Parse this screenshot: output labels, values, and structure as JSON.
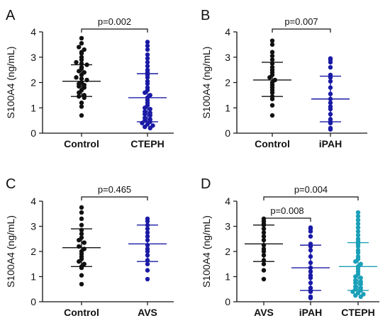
{
  "colors": {
    "black": "#111111",
    "dark_blue": "#1a1aa6",
    "blue": "#1f35b8",
    "teal": "#1aa0b8"
  },
  "chart_data": [
    {
      "panel": "A",
      "type": "scatter",
      "ylabel": "S100A4 (ng/mL)",
      "ylim": [
        0,
        4
      ],
      "yticks": [
        "0",
        "1",
        "2",
        "3",
        "4"
      ],
      "categories": [
        "Control",
        "CTEPH"
      ],
      "groups": [
        {
          "name": "Control",
          "color": "#111111",
          "mean": 2.05,
          "sd_low": 1.45,
          "sd_high": 2.7,
          "values": [
            3.75,
            3.55,
            3.4,
            3.3,
            3.2,
            3.15,
            3.0,
            2.9,
            2.8,
            2.75,
            2.7,
            2.6,
            2.55,
            2.45,
            2.4,
            2.3,
            2.2,
            2.15,
            2.1,
            2.0,
            1.95,
            1.9,
            1.85,
            1.8,
            1.7,
            1.6,
            1.5,
            1.45,
            1.4,
            1.2,
            1.05,
            0.7
          ]
        },
        {
          "name": "CTEPH",
          "color": "#1a1aa6",
          "mean": 1.4,
          "sd_low": 0.45,
          "sd_high": 2.35,
          "values": [
            3.6,
            3.45,
            3.3,
            3.1,
            2.95,
            2.8,
            2.65,
            2.5,
            2.4,
            2.3,
            2.2,
            2.05,
            1.95,
            1.8,
            1.7,
            1.6,
            1.5,
            1.4,
            1.3,
            1.2,
            1.1,
            1.0,
            0.95,
            0.85,
            0.8,
            0.75,
            0.7,
            0.6,
            0.55,
            0.5,
            0.45,
            0.4,
            0.35,
            0.3,
            0.25,
            0.2
          ]
        }
      ],
      "comparisons": [
        {
          "from": "Control",
          "to": "CTEPH",
          "label": "p=0.002"
        }
      ]
    },
    {
      "panel": "B",
      "type": "scatter",
      "ylabel": "S100A4 (ng/mL)",
      "ylim": [
        0,
        4
      ],
      "yticks": [
        "0",
        "1",
        "2",
        "3",
        "4"
      ],
      "categories": [
        "Control",
        "iPAH"
      ],
      "groups": [
        {
          "name": "Control",
          "color": "#111111",
          "mean": 2.1,
          "sd_low": 1.45,
          "sd_high": 2.8,
          "values": [
            3.65,
            3.5,
            3.2,
            3.05,
            2.9,
            2.75,
            2.6,
            2.5,
            2.4,
            2.3,
            2.2,
            2.1,
            2.0,
            1.9,
            1.8,
            1.7,
            1.6,
            1.45,
            1.35,
            1.1,
            0.7
          ]
        },
        {
          "name": "iPAH",
          "color": "#1a1aa6",
          "mean": 1.35,
          "sd_low": 0.45,
          "sd_high": 2.25,
          "values": [
            2.95,
            2.9,
            2.8,
            2.6,
            2.3,
            2.2,
            2.05,
            1.8,
            1.55,
            1.35,
            1.2,
            1.05,
            0.95,
            0.75,
            0.55,
            0.45,
            0.4,
            0.2,
            0.15
          ]
        }
      ],
      "comparisons": [
        {
          "from": "Control",
          "to": "iPAH",
          "label": "p=0.007"
        }
      ]
    },
    {
      "panel": "C",
      "type": "scatter",
      "ylabel": "S100A4 (ng/mL)",
      "ylim": [
        0,
        4
      ],
      "yticks": [
        "0",
        "1",
        "2",
        "3",
        "4"
      ],
      "categories": [
        "Control",
        "AVS"
      ],
      "groups": [
        {
          "name": "Control",
          "color": "#111111",
          "mean": 2.15,
          "sd_low": 1.4,
          "sd_high": 2.9,
          "values": [
            3.75,
            3.55,
            3.3,
            3.05,
            2.85,
            2.7,
            2.55,
            2.45,
            2.35,
            2.2,
            2.1,
            2.0,
            1.9,
            1.8,
            1.7,
            1.6,
            1.5,
            1.4,
            1.35,
            1.05,
            0.7
          ]
        },
        {
          "name": "AVS",
          "color": "#1a1aa6",
          "mean": 2.3,
          "sd_low": 1.6,
          "sd_high": 3.05,
          "values": [
            3.3,
            3.2,
            3.05,
            2.9,
            2.75,
            2.6,
            2.45,
            2.25,
            2.1,
            2.0,
            1.85,
            1.65,
            1.5,
            1.25,
            0.9
          ]
        }
      ],
      "comparisons": [
        {
          "from": "Control",
          "to": "AVS",
          "label": "p=0.465"
        }
      ]
    },
    {
      "panel": "D",
      "type": "scatter",
      "ylabel": "S100A4 (ng/mL)",
      "ylim": [
        0,
        4
      ],
      "yticks": [
        "0",
        "1",
        "2",
        "3",
        "4"
      ],
      "categories": [
        "AVS",
        "iPAH",
        "CTEPH"
      ],
      "groups": [
        {
          "name": "AVS",
          "color": "#111111",
          "mean": 2.3,
          "sd_low": 1.6,
          "sd_high": 3.05,
          "values": [
            3.3,
            3.2,
            3.1,
            3.05,
            2.9,
            2.75,
            2.6,
            2.45,
            2.25,
            2.1,
            2.0,
            1.85,
            1.65,
            1.5,
            1.25,
            0.9
          ]
        },
        {
          "name": "iPAH",
          "color": "#1a1aa6",
          "mean": 1.35,
          "sd_low": 0.45,
          "sd_high": 2.25,
          "values": [
            2.95,
            2.9,
            2.8,
            2.6,
            2.3,
            2.2,
            2.05,
            1.8,
            1.55,
            1.35,
            1.2,
            1.05,
            0.95,
            0.75,
            0.55,
            0.45,
            0.4,
            0.2,
            0.15
          ]
        },
        {
          "name": "CTEPH",
          "color": "#1aa0b8",
          "mean": 1.4,
          "sd_low": 0.45,
          "sd_high": 2.35,
          "values": [
            3.55,
            3.4,
            3.25,
            3.1,
            2.95,
            2.8,
            2.65,
            2.5,
            2.4,
            2.3,
            2.2,
            2.05,
            1.95,
            1.8,
            1.7,
            1.6,
            1.5,
            1.4,
            1.3,
            1.2,
            1.1,
            1.0,
            0.95,
            0.85,
            0.8,
            0.75,
            0.7,
            0.6,
            0.55,
            0.5,
            0.45,
            0.4,
            0.35,
            0.3,
            0.25,
            0.2
          ]
        }
      ],
      "comparisons": [
        {
          "from": "AVS",
          "to": "iPAH",
          "label": "p=0.008"
        },
        {
          "from": "AVS",
          "to": "CTEPH",
          "label": "p=0.004"
        }
      ]
    }
  ]
}
